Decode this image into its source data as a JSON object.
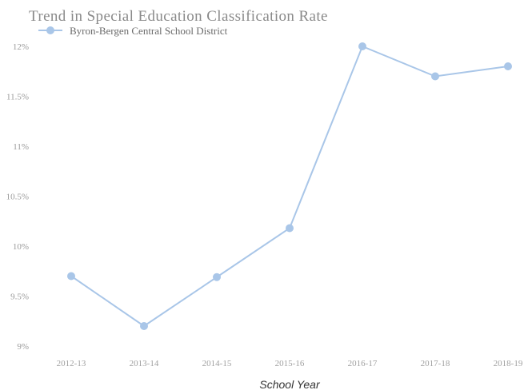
{
  "chart_data": {
    "type": "line",
    "title": "Trend in Special Education Classification Rate",
    "xlabel": "School Year",
    "ylabel": "",
    "categories": [
      "2012-13",
      "2013-14",
      "2014-15",
      "2015-16",
      "2016-17",
      "2017-18",
      "2018-19"
    ],
    "yticks": [
      "9%",
      "9.5%",
      "10%",
      "10.5%",
      "11%",
      "11.5%",
      "12%"
    ],
    "ylim": [
      9,
      12
    ],
    "series": [
      {
        "name": "Byron-Bergen Central School District",
        "values": [
          9.7,
          9.2,
          9.69,
          10.18,
          12.0,
          11.7,
          11.8
        ]
      }
    ],
    "legend_position": "top-left",
    "grid": false,
    "colors": {
      "series": "#a9c6e8",
      "marker": "#a9c6e8"
    }
  }
}
